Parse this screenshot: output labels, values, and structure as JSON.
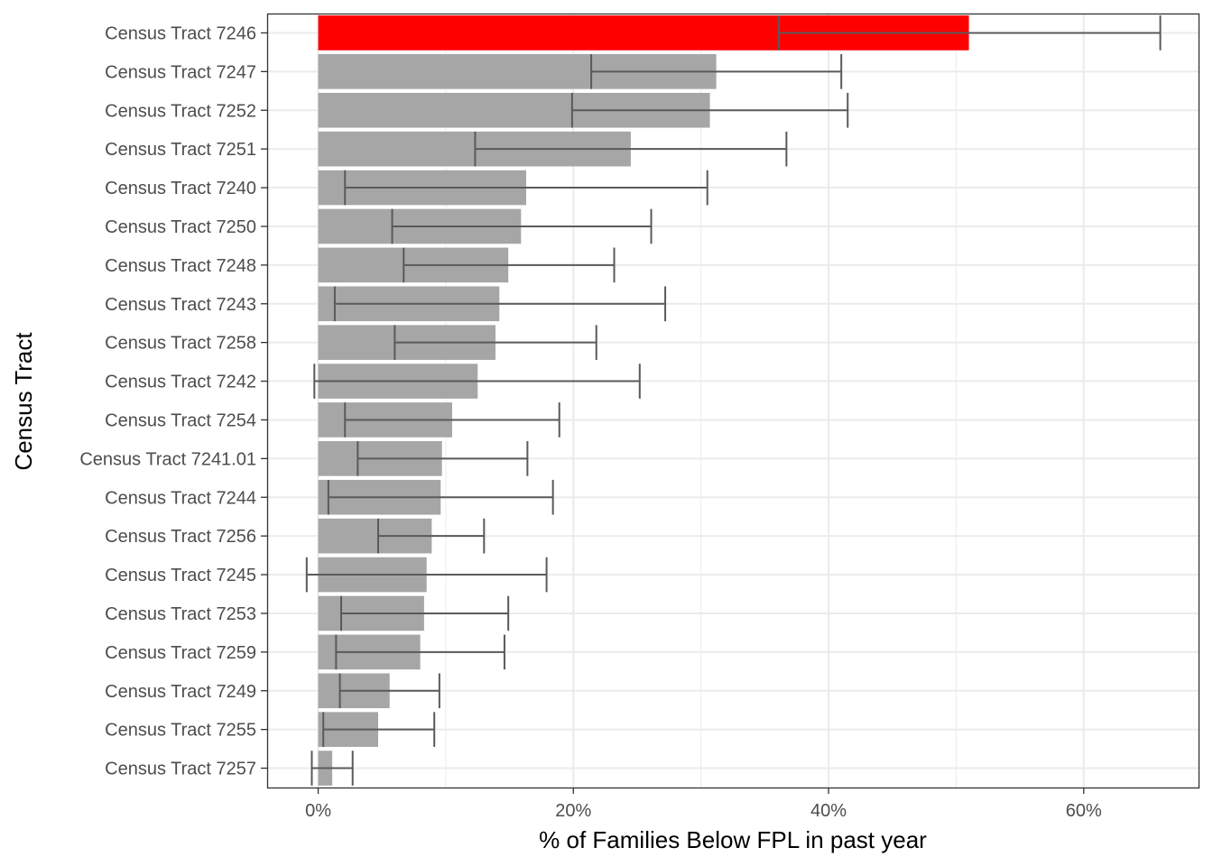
{
  "chart_data": {
    "type": "bar",
    "orientation": "horizontal",
    "xlabel": "% of Families Below FPL in past year",
    "ylabel": "Census Tract",
    "xlim": [
      -4,
      69
    ],
    "x_ticks": [
      0,
      20,
      40,
      60
    ],
    "x_tick_labels": [
      "0%",
      "20%",
      "40%",
      "60%"
    ],
    "grid": true,
    "legend": "none",
    "colors": {
      "highlight": "#ff0000",
      "default": "#a6a6a6",
      "errorbar": "#5a5a5a",
      "grid": "#ebebeb",
      "border": "#333333"
    },
    "categories": [
      "Census Tract 7246",
      "Census Tract 7247",
      "Census Tract 7252",
      "Census Tract 7251",
      "Census Tract 7240",
      "Census Tract 7250",
      "Census Tract 7248",
      "Census Tract 7243",
      "Census Tract 7258",
      "Census Tract 7242",
      "Census Tract 7254",
      "Census Tract 7241.01",
      "Census Tract 7244",
      "Census Tract 7256",
      "Census Tract 7245",
      "Census Tract 7253",
      "Census Tract 7259",
      "Census Tract 7249",
      "Census Tract 7255",
      "Census Tract 7257"
    ],
    "values": [
      51.0,
      31.2,
      30.7,
      24.5,
      16.3,
      15.9,
      14.9,
      14.2,
      13.9,
      12.5,
      10.5,
      9.7,
      9.6,
      8.9,
      8.5,
      8.3,
      8.0,
      5.6,
      4.7,
      1.1
    ],
    "error_low": [
      36.1,
      21.4,
      19.9,
      12.3,
      2.1,
      5.8,
      6.7,
      1.3,
      6.0,
      -0.3,
      2.1,
      3.1,
      0.8,
      4.7,
      -0.9,
      1.8,
      1.4,
      1.7,
      0.4,
      -0.5
    ],
    "error_high": [
      66.0,
      41.0,
      41.5,
      36.7,
      30.5,
      26.1,
      23.2,
      27.2,
      21.8,
      25.2,
      18.9,
      16.4,
      18.4,
      13.0,
      17.9,
      14.9,
      14.6,
      9.5,
      9.1,
      2.7
    ],
    "highlight_index": 0
  }
}
